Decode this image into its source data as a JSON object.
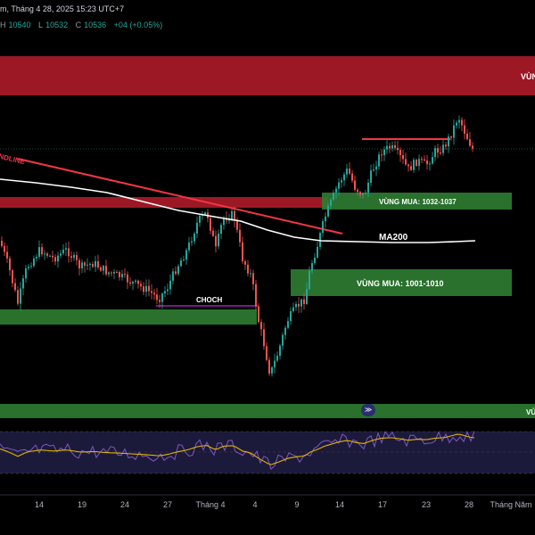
{
  "header": {
    "title": "m, Tháng 4 28, 2025 15:23 UTC+7",
    "ohlc": {
      "h_label": "H",
      "h": "10540",
      "l_label": "L",
      "l": "10532",
      "c_label": "C",
      "c": "10536",
      "change": "+04 (+0.05%)"
    }
  },
  "labels": {
    "trendline": "NDLINE",
    "choch": "CHOCH",
    "buy_zone_1": "VÙNG MUA: 1032-1037",
    "buy_zone_2": "VÙNG MUA: 1001-1010",
    "ma200": "MA200",
    "sell_zone": "VÙN",
    "right_edge": "VÙ"
  },
  "rsi_button": "≫",
  "colors": {
    "up": "#26a69a",
    "down": "#ef5350",
    "sell_zone": "#b71c2b",
    "buy_zone": "#2e7d32",
    "ma": "#ffffff",
    "trendline": "#f23645",
    "choch": "#9c27b0",
    "rsi": "#7e57c2",
    "rsi_ma": "#e0b400"
  },
  "chart_data": {
    "type": "candlestick",
    "x_tick_labels": [
      "14",
      "19",
      "24",
      "27",
      "Tháng 4",
      "4",
      "9",
      "14",
      "17",
      "23",
      "28",
      "Tháng Năm"
    ],
    "series": [
      {
        "name": "MA200"
      }
    ],
    "zones": [
      {
        "label": "VÙNG MUA: 1032-1037",
        "low": 1032,
        "high": 1037
      },
      {
        "label": "VÙNG MUA: 1001-1010",
        "low": 1001,
        "high": 1010
      }
    ],
    "last_close": 10536,
    "grid": false,
    "indicator_panel": "RSI"
  }
}
